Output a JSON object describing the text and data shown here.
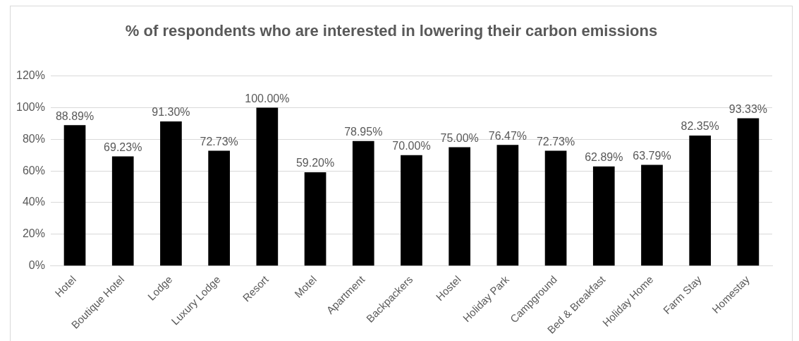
{
  "chart_data": {
    "type": "bar",
    "title": "% of respondents who are interested in lowering their carbon emissions",
    "categories": [
      "Hotel",
      "Boutique Hotel",
      "Lodge",
      "Luxury Lodge",
      "Resort",
      "Motel",
      "Apartment",
      "Backpackers",
      "Hostel",
      "Holiday Park",
      "Campground",
      "Bed & Breakfast",
      "Holiday Home",
      "Farm Stay",
      "Homestay"
    ],
    "values": [
      88.89,
      69.23,
      91.3,
      72.73,
      100.0,
      59.2,
      78.95,
      70.0,
      75.0,
      76.47,
      72.73,
      62.89,
      63.79,
      82.35,
      93.33
    ],
    "value_labels": [
      "88.89%",
      "69.23%",
      "91.30%",
      "72.73%",
      "100.00%",
      "59.20%",
      "78.95%",
      "70.00%",
      "75.00%",
      "76.47%",
      "72.73%",
      "62.89%",
      "63.79%",
      "82.35%",
      "93.33%"
    ],
    "color": "#000000",
    "ylim": [
      0,
      120
    ],
    "yticks": [
      {
        "value": 0,
        "label": "0%"
      },
      {
        "value": 20,
        "label": "20%"
      },
      {
        "value": 40,
        "label": "40%"
      },
      {
        "value": 60,
        "label": "60%"
      },
      {
        "value": 80,
        "label": "80%"
      },
      {
        "value": 100,
        "label": "100%"
      },
      {
        "value": 120,
        "label": "120%"
      }
    ],
    "grid": "y"
  }
}
